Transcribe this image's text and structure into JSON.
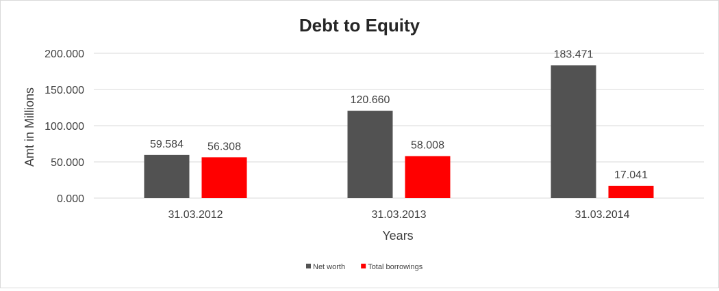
{
  "chart_data": {
    "type": "bar",
    "title": "Debt to Equity",
    "xlabel": "Years",
    "ylabel": "Amt in Millions",
    "categories": [
      "31.03.2012",
      "31.03.2013",
      "31.03.2014"
    ],
    "series": [
      {
        "name": "Net worth",
        "values": [
          59.584,
          120.66,
          183.471
        ],
        "color": "#525252",
        "labels": [
          "59.584",
          "120.660",
          "183.471"
        ]
      },
      {
        "name": "Total borrowings",
        "values": [
          56.308,
          58.008,
          17.041
        ],
        "color": "#ff0000",
        "labels": [
          "56.308",
          "58.008",
          "17.041"
        ]
      }
    ],
    "ylim": [
      0,
      200
    ],
    "yticks": [
      0,
      50,
      100,
      150,
      200
    ],
    "ytick_labels": [
      "0.000",
      "50.000",
      "100.000",
      "150.000",
      "200.000"
    ],
    "grid": true,
    "legend_position": "bottom",
    "colors": {
      "grid": "#d9d9d9",
      "text": "#404040",
      "title": "#262626"
    }
  }
}
